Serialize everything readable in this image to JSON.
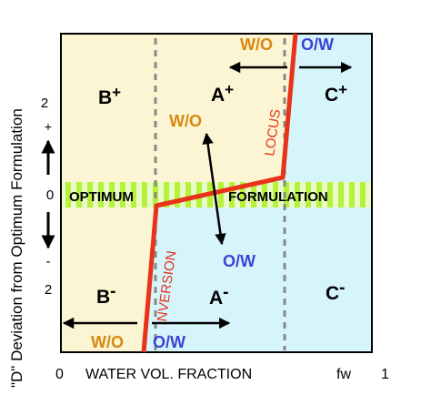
{
  "y_axis_label": "\"D\" Deviation from Optimum Formulation",
  "y_ticks": {
    "top_2": "2",
    "top_plus": "+",
    "zero": "0",
    "bottom_minus": "-",
    "bottom_2": "2"
  },
  "x_axis": {
    "left_tick": "0",
    "label": "WATER VOL. FRACTION",
    "var": "fw",
    "right_tick": "1"
  },
  "regions": {
    "b_plus": {
      "letter": "B",
      "sign": "+"
    },
    "a_plus": {
      "letter": "A",
      "sign": "+"
    },
    "c_plus": {
      "letter": "C",
      "sign": "+"
    },
    "b_minus": {
      "letter": "B",
      "sign": "-"
    },
    "a_minus": {
      "letter": "A",
      "sign": "-"
    },
    "c_minus": {
      "letter": "C",
      "sign": "-"
    }
  },
  "band": {
    "left_text": "OPTIMUM",
    "right_text": "FORMULATION"
  },
  "line_labels": {
    "locus": "LOCUS",
    "inversion": "INVERSION"
  },
  "emulsion_labels": {
    "top_wo": "W/O",
    "top_ow": "O/W",
    "mid_wo": "W/O",
    "mid_ow": "O/W",
    "bottom_wo": "W/O",
    "bottom_ow": "O/W"
  },
  "colors": {
    "left_region": "#fbf5d3",
    "right_region": "#d6f5fb",
    "band_green": "#b6f13c",
    "inversion_line": "#e83219",
    "wo_color": "#d9870f",
    "ow_color": "#3a43d6",
    "dashed_line": "#888888"
  }
}
